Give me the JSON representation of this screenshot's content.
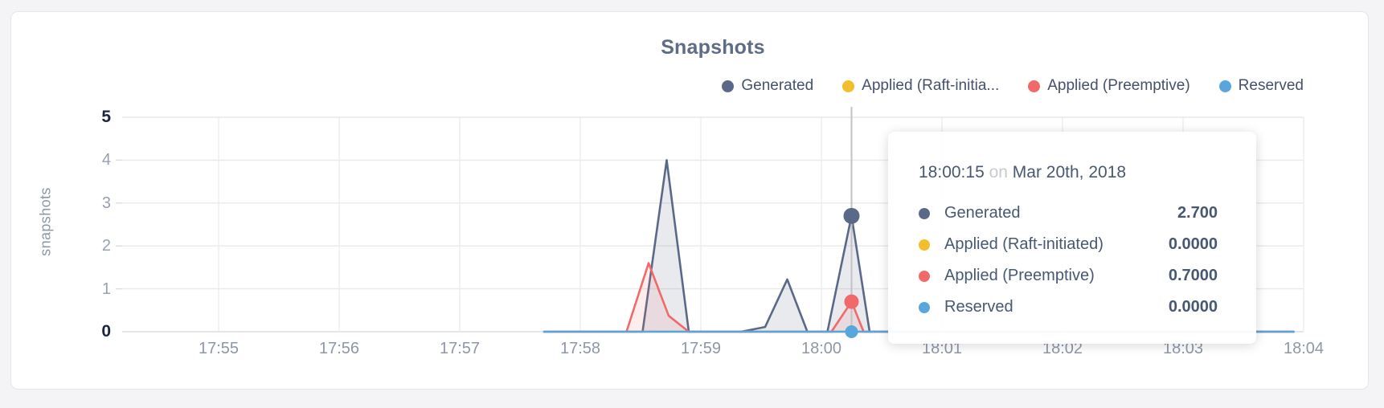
{
  "card": {
    "title": "Snapshots"
  },
  "legend": {
    "items": [
      {
        "label": "Generated",
        "color": "#5A6988"
      },
      {
        "label": "Applied (Raft-initia...",
        "color": "#F2BE2C"
      },
      {
        "label": "Applied (Preemptive)",
        "color": "#F16969"
      },
      {
        "label": "Reserved",
        "color": "#58A6DC"
      }
    ]
  },
  "tooltip": {
    "time": "18:00:15",
    "conj": "on",
    "date": "Mar 20th, 2018",
    "rows": [
      {
        "label": "Generated",
        "value": "2.700",
        "color": "#5A6988"
      },
      {
        "label": "Applied (Raft-initiated)",
        "value": "0.0000",
        "color": "#F2BE2C"
      },
      {
        "label": "Applied (Preemptive)",
        "value": "0.7000",
        "color": "#F16969"
      },
      {
        "label": "Reserved",
        "value": "0.0000",
        "color": "#58A6DC"
      }
    ]
  },
  "chart_data": {
    "type": "area",
    "title": "Snapshots",
    "xlabel": "",
    "ylabel": "snapshots",
    "x_ticks": [
      "17:55",
      "17:56",
      "17:57",
      "17:58",
      "17:59",
      "18:00",
      "18:01",
      "18:02",
      "18:03",
      "18:04"
    ],
    "y_ticks": [
      5,
      4,
      3,
      2,
      1,
      0
    ],
    "ylim": [
      0,
      5
    ],
    "grid": true,
    "legend_position": "top-right",
    "x_unit_note": "t is seconds after 17:55:00",
    "series": [
      {
        "name": "Generated",
        "color": "#5A6988",
        "fill": "rgba(90,105,136,0.14)",
        "points": [
          [
            162,
            0
          ],
          [
            211,
            0
          ],
          [
            223,
            4.0
          ],
          [
            234,
            0
          ],
          [
            260,
            0
          ],
          [
            272,
            0.11
          ],
          [
            283,
            1.22
          ],
          [
            293,
            0
          ],
          [
            303,
            0
          ],
          [
            315,
            2.7
          ],
          [
            324,
            0
          ],
          [
            535,
            0
          ]
        ]
      },
      {
        "name": "Applied (Raft-initiated)",
        "color": "#F2BE2C",
        "fill": "none",
        "points": [
          [
            162,
            0
          ],
          [
            535,
            0
          ]
        ]
      },
      {
        "name": "Applied (Preemptive)",
        "color": "#F16969",
        "fill": "rgba(241,105,105,0.12)",
        "points": [
          [
            162,
            0
          ],
          [
            203,
            0
          ],
          [
            214,
            1.6
          ],
          [
            224,
            0.37
          ],
          [
            234,
            0
          ],
          [
            305,
            0
          ],
          [
            315,
            0.7
          ],
          [
            321,
            0
          ],
          [
            535,
            0
          ]
        ]
      },
      {
        "name": "Reserved",
        "color": "#58A6DC",
        "fill": "none",
        "points": [
          [
            162,
            0
          ],
          [
            535,
            0
          ]
        ]
      }
    ],
    "hover": {
      "t": 315,
      "time": "18:00:15",
      "date": "Mar 20th, 2018",
      "points": [
        {
          "series": 0,
          "value": 2.7,
          "r": 10
        },
        {
          "series": 2,
          "value": 0.7,
          "r": 9
        },
        {
          "series": 3,
          "value": 0.0,
          "r": 8
        }
      ]
    }
  }
}
